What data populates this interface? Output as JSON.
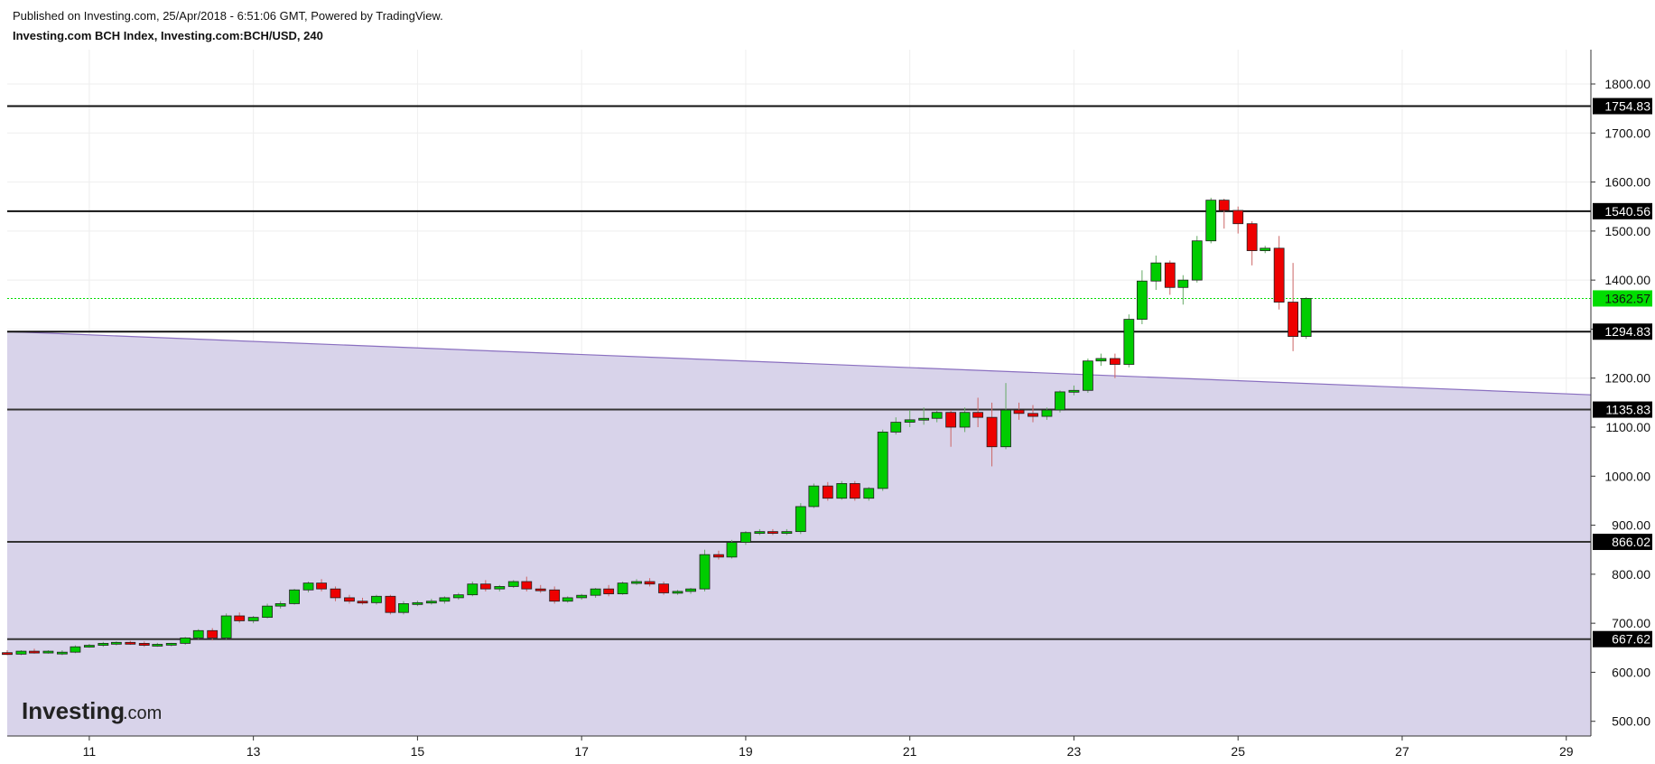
{
  "header": {
    "published": "Published on Investing.com, 25/Apr/2018 - 6:51:06 GMT, Powered by TradingView.",
    "title": "Investing.com BCH Index, Investing.com:BCH/USD, 240"
  },
  "logo": {
    "main": "Investing",
    "suffix": ".com"
  },
  "colors": {
    "up": "#00cc00",
    "down": "#ee0000",
    "shade": "#d8d3ea",
    "trendline": "#8a6fc0",
    "current_price": "#00dd00"
  },
  "chart_data": {
    "type": "candlestick",
    "x_range": [
      10.0,
      29.3
    ],
    "y_range": [
      470,
      1870
    ],
    "x_ticks": [
      11,
      13,
      15,
      17,
      19,
      21,
      23,
      25,
      27,
      29
    ],
    "x_tick_labels": [
      "11",
      "13",
      "15",
      "17",
      "19",
      "21",
      "23",
      "25",
      "27",
      "29"
    ],
    "y_ticks": [
      500,
      600,
      700,
      800,
      900,
      1000,
      1100,
      1200,
      1300,
      1400,
      1500,
      1600,
      1700,
      1800
    ],
    "y_tick_labels": [
      "500.00",
      "600.00",
      "700.00",
      "800.00",
      "900.00",
      "1000.00",
      "1100.00",
      "1200.00",
      "1300.00",
      "1400.00",
      "1500.00",
      "1600.00",
      "1700.00",
      "1800.00"
    ],
    "levels": [
      {
        "value": 1754.83,
        "label": "1754.83",
        "color": "#111111"
      },
      {
        "value": 1540.56,
        "label": "1540.56",
        "color": "#111111"
      },
      {
        "value": 1294.83,
        "label": "1294.83",
        "color": "#111111"
      },
      {
        "value": 1135.83,
        "label": "1135.83",
        "color": "#333333"
      },
      {
        "value": 866.02,
        "label": "866.02",
        "color": "#333333"
      },
      {
        "value": 667.62,
        "label": "667.62",
        "color": "#333333"
      }
    ],
    "current_price": {
      "value": 1362.57,
      "label": "1362.57"
    },
    "trendline": {
      "start": [
        10.0,
        1295
      ],
      "end": [
        29.3,
        1166
      ],
      "fill_to": 470
    },
    "candles": [
      [
        10.0,
        640,
        645,
        637,
        635
      ],
      [
        10.17,
        637,
        645,
        643,
        635
      ],
      [
        10.33,
        643,
        648,
        641,
        638
      ],
      [
        10.5,
        641,
        645,
        643,
        638
      ],
      [
        10.67,
        638,
        645,
        641,
        635
      ],
      [
        10.83,
        641,
        655,
        652,
        639
      ],
      [
        11.0,
        652,
        658,
        655,
        650
      ],
      [
        11.17,
        655,
        662,
        659,
        652
      ],
      [
        11.33,
        659,
        663,
        661,
        655
      ],
      [
        11.5,
        661,
        664,
        659,
        656
      ],
      [
        11.67,
        659,
        663,
        655,
        652
      ],
      [
        11.83,
        655,
        660,
        657,
        652
      ],
      [
        12.0,
        657,
        660,
        659,
        653
      ],
      [
        12.17,
        659,
        672,
        670,
        656
      ],
      [
        12.33,
        670,
        688,
        685,
        667
      ],
      [
        12.5,
        685,
        690,
        670,
        665
      ],
      [
        12.67,
        670,
        720,
        715,
        667
      ],
      [
        12.83,
        715,
        722,
        705,
        701
      ],
      [
        13.0,
        705,
        715,
        712,
        700
      ],
      [
        13.17,
        712,
        740,
        735,
        710
      ],
      [
        13.33,
        735,
        745,
        740,
        730
      ],
      [
        13.5,
        740,
        770,
        768,
        738
      ],
      [
        13.67,
        768,
        785,
        782,
        763
      ],
      [
        13.83,
        782,
        790,
        770,
        765
      ],
      [
        14.0,
        770,
        775,
        752,
        745
      ],
      [
        14.17,
        752,
        758,
        745,
        740
      ],
      [
        14.33,
        745,
        752,
        742,
        738
      ],
      [
        14.5,
        742,
        758,
        755,
        738
      ],
      [
        14.67,
        755,
        758,
        722,
        718
      ],
      [
        14.83,
        722,
        745,
        740,
        718
      ],
      [
        15.0,
        740,
        746,
        742,
        735
      ],
      [
        15.17,
        742,
        750,
        745,
        738
      ],
      [
        15.33,
        745,
        755,
        752,
        740
      ],
      [
        15.5,
        752,
        762,
        758,
        748
      ],
      [
        15.67,
        758,
        785,
        780,
        755
      ],
      [
        15.83,
        780,
        788,
        770,
        765
      ],
      [
        16.0,
        770,
        778,
        775,
        765
      ],
      [
        16.17,
        775,
        788,
        785,
        772
      ],
      [
        16.33,
        785,
        795,
        770,
        765
      ],
      [
        16.5,
        770,
        778,
        768,
        762
      ],
      [
        16.67,
        768,
        775,
        745,
        740
      ],
      [
        16.83,
        745,
        755,
        752,
        742
      ],
      [
        17.0,
        752,
        760,
        757,
        748
      ],
      [
        17.17,
        757,
        772,
        770,
        752
      ],
      [
        17.33,
        770,
        778,
        760,
        755
      ],
      [
        17.5,
        760,
        785,
        782,
        758
      ],
      [
        17.67,
        782,
        790,
        785,
        778
      ],
      [
        17.83,
        785,
        792,
        780,
        775
      ],
      [
        18.0,
        780,
        785,
        762,
        758
      ],
      [
        18.17,
        762,
        768,
        765,
        758
      ],
      [
        18.33,
        765,
        772,
        770,
        760
      ],
      [
        18.5,
        770,
        850,
        840,
        765
      ],
      [
        18.67,
        840,
        848,
        835,
        830
      ],
      [
        18.83,
        835,
        870,
        865,
        832
      ],
      [
        19.0,
        865,
        888,
        885,
        860
      ],
      [
        19.17,
        885,
        892,
        887,
        880
      ],
      [
        19.33,
        887,
        892,
        885,
        880
      ],
      [
        19.5,
        885,
        892,
        887,
        880
      ],
      [
        19.67,
        887,
        945,
        938,
        882
      ],
      [
        19.83,
        938,
        985,
        980,
        935
      ],
      [
        20.0,
        980,
        988,
        955,
        950
      ],
      [
        20.17,
        955,
        990,
        985,
        952
      ],
      [
        20.33,
        985,
        990,
        955,
        950
      ],
      [
        20.5,
        955,
        978,
        975,
        950
      ],
      [
        20.67,
        975,
        1095,
        1090,
        970
      ],
      [
        20.83,
        1090,
        1120,
        1110,
        1085
      ],
      [
        21.0,
        1110,
        1135,
        1115,
        1100
      ],
      [
        21.17,
        1115,
        1140,
        1118,
        1105
      ],
      [
        21.33,
        1118,
        1135,
        1130,
        1110
      ],
      [
        21.5,
        1130,
        1135,
        1100,
        1060
      ],
      [
        21.67,
        1100,
        1140,
        1130,
        1090
      ],
      [
        21.83,
        1130,
        1160,
        1120,
        1100
      ],
      [
        22.0,
        1120,
        1150,
        1060,
        1020
      ],
      [
        22.17,
        1060,
        1190,
        1135,
        1055
      ],
      [
        22.33,
        1135,
        1150,
        1128,
        1115
      ],
      [
        22.5,
        1128,
        1145,
        1122,
        1110
      ],
      [
        22.67,
        1122,
        1140,
        1135,
        1115
      ],
      [
        22.83,
        1135,
        1175,
        1172,
        1130
      ],
      [
        23.0,
        1172,
        1185,
        1175,
        1165
      ],
      [
        23.17,
        1175,
        1240,
        1235,
        1170
      ],
      [
        23.33,
        1235,
        1250,
        1240,
        1225
      ],
      [
        23.5,
        1240,
        1250,
        1228,
        1200
      ],
      [
        23.67,
        1228,
        1330,
        1320,
        1222
      ],
      [
        23.83,
        1320,
        1420,
        1398,
        1310
      ],
      [
        24.0,
        1398,
        1450,
        1435,
        1380
      ],
      [
        24.17,
        1435,
        1440,
        1385,
        1370
      ],
      [
        24.33,
        1385,
        1410,
        1400,
        1350
      ],
      [
        24.5,
        1400,
        1490,
        1480,
        1395
      ],
      [
        24.67,
        1480,
        1568,
        1563,
        1475
      ],
      [
        24.83,
        1563,
        1566,
        1542,
        1505
      ],
      [
        25.0,
        1542,
        1550,
        1515,
        1495
      ],
      [
        25.17,
        1515,
        1520,
        1460,
        1430
      ],
      [
        25.33,
        1460,
        1470,
        1465,
        1455
      ],
      [
        25.5,
        1465,
        1490,
        1355,
        1340
      ],
      [
        25.67,
        1355,
        1435,
        1285,
        1255
      ],
      [
        25.83,
        1285,
        1365,
        1362.57,
        1280
      ]
    ]
  }
}
